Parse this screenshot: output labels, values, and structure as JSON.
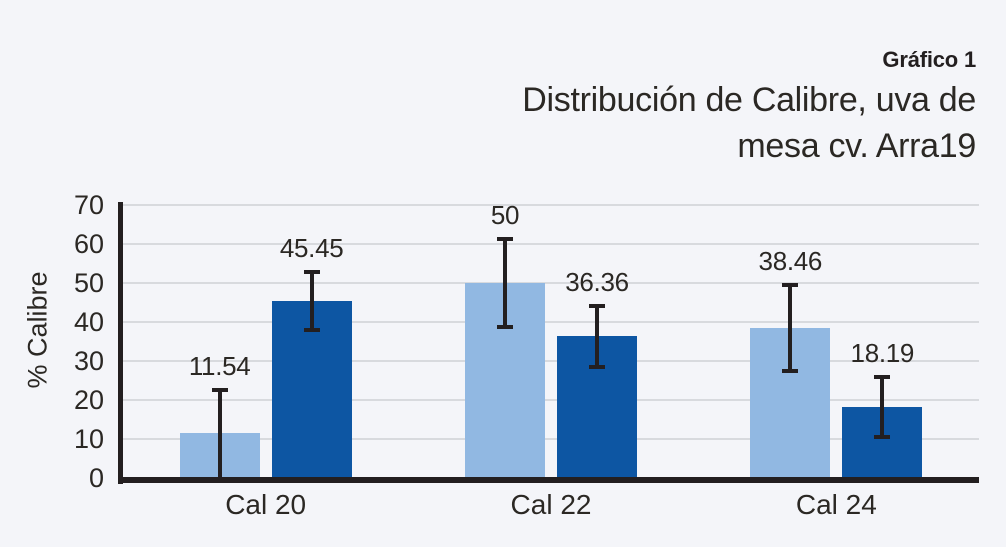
{
  "header": {
    "kicker": "Gráfico 1",
    "title_line1": "Distribución de Calibre, uva de",
    "title_line2": "mesa cv. Arra19"
  },
  "chart_data": {
    "type": "bar",
    "title": "Distribución de Calibre, uva de mesa cv. Arra19",
    "xlabel": "",
    "ylabel": "% Calibre",
    "ylim": [
      0,
      70
    ],
    "yticks": [
      0,
      10,
      20,
      30,
      40,
      50,
      60,
      70
    ],
    "grid": "horizontal",
    "legend": "none",
    "categories": [
      "Cal 20",
      "Cal 22",
      "Cal 24"
    ],
    "series": [
      {
        "name": "serie-clara",
        "color": "#91b8e2",
        "values": [
          11.54,
          50,
          38.46
        ],
        "value_labels": [
          "11.54",
          "50",
          "38.46"
        ],
        "errors": [
          11.54,
          11.8,
          11.5
        ]
      },
      {
        "name": "serie-oscura",
        "color": "#0d56a3",
        "values": [
          45.45,
          36.36,
          18.19
        ],
        "value_labels": [
          "45.45",
          "36.36",
          "18.19"
        ],
        "errors": [
          8.0,
          8.3,
          8.2
        ]
      }
    ],
    "colors": {
      "background": "#f4f5f9",
      "grid": "#d8dade",
      "axis": "#231f20",
      "error_bar": "#231f20",
      "text": "#2b2824"
    }
  }
}
